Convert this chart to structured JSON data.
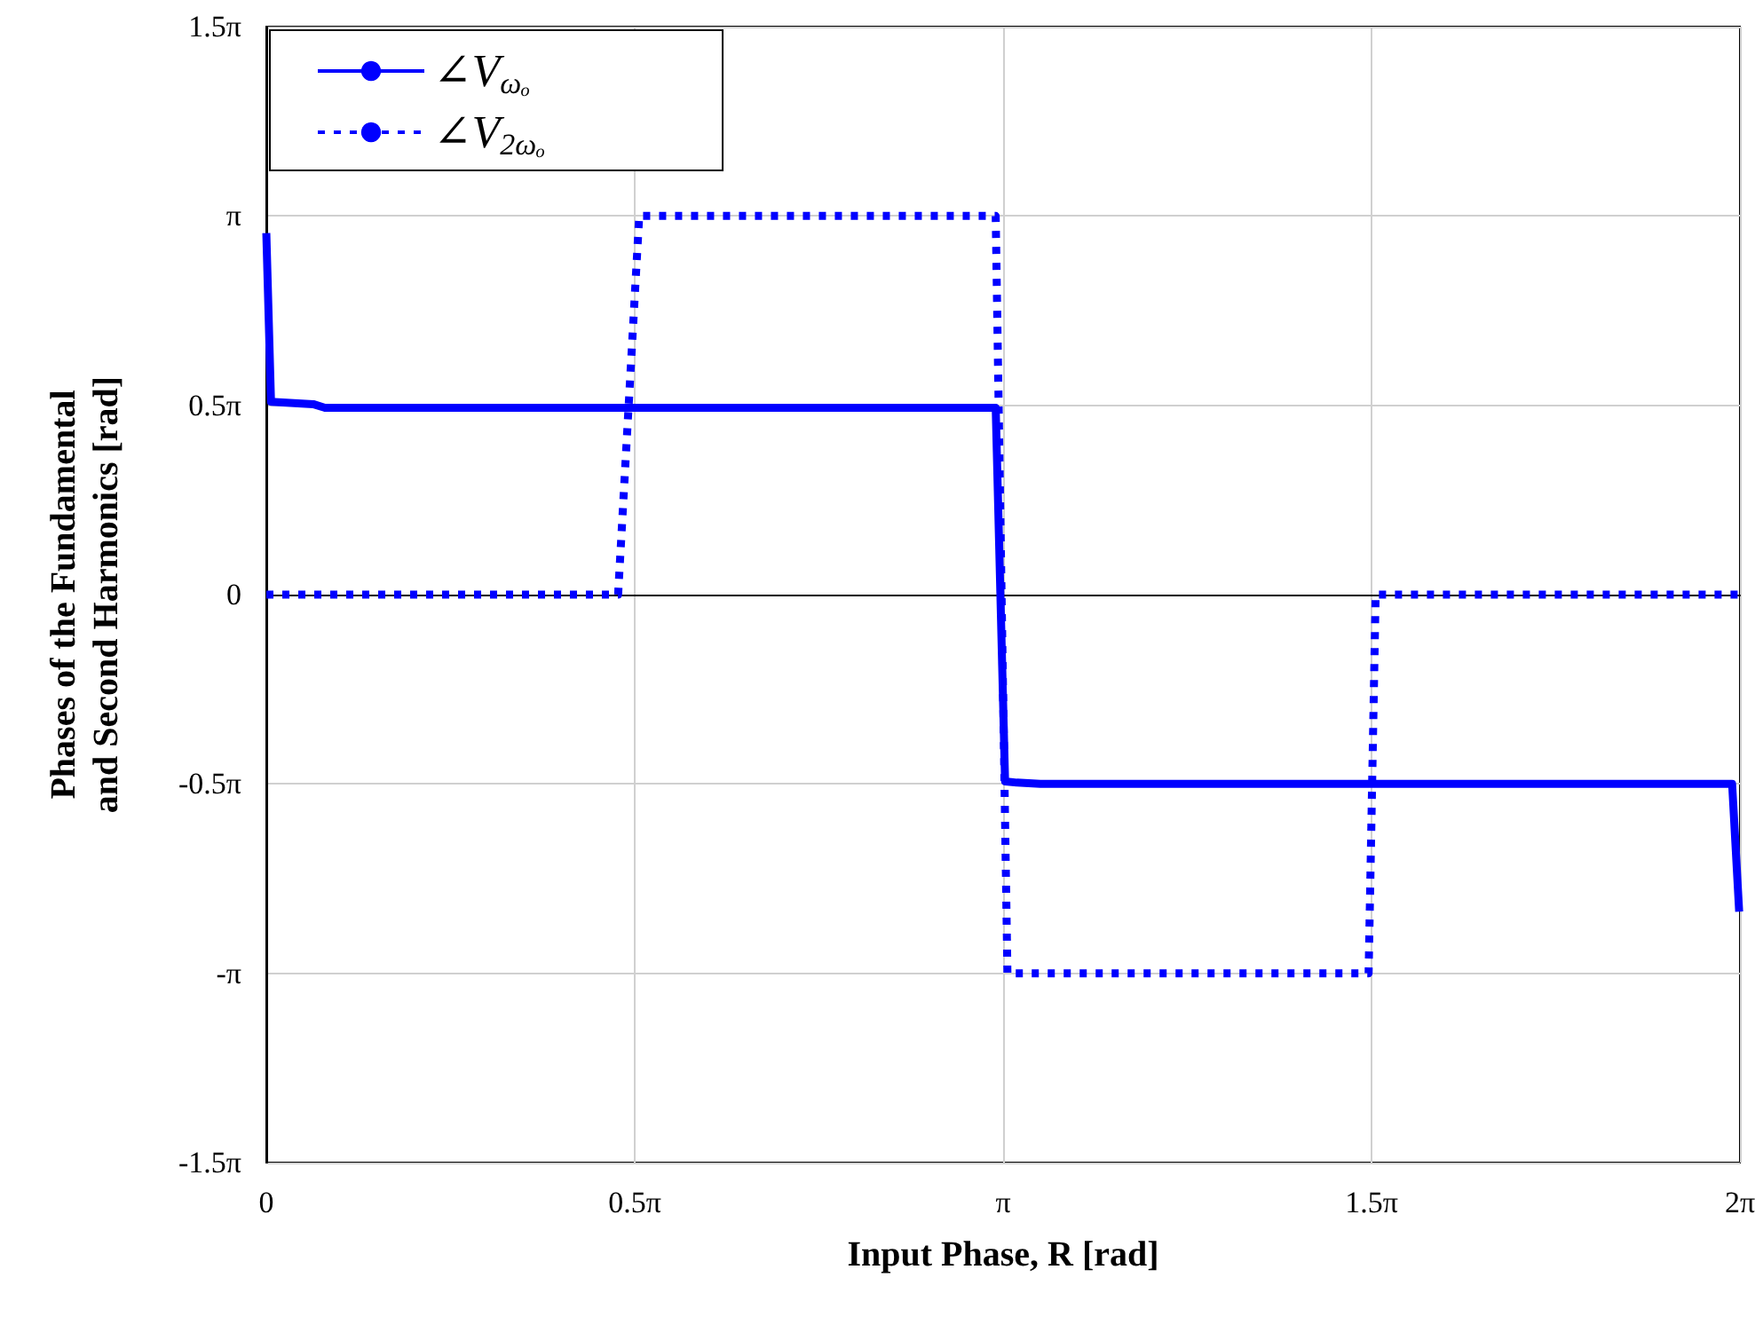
{
  "chart_data": {
    "type": "line",
    "xlabel": "Input Phase, R [rad]",
    "ylabel": "Phases of the Fundamental\nand Second Harmonics [rad]",
    "xlim": [
      0,
      6.2832
    ],
    "xticks": [
      0,
      {
        "value": 1.5708,
        "label": "0.5π"
      },
      {
        "value": 3.1416,
        "label": "π"
      },
      {
        "value": 4.7124,
        "label": "1.5π"
      },
      {
        "value": 6.2832,
        "label": "2π"
      }
    ],
    "ylim": [
      -4.7124,
      4.7124
    ],
    "yticks": [
      {
        "value": -4.7124,
        "label": "-1.5π"
      },
      {
        "value": -3.1416,
        "label": "-π"
      },
      {
        "value": -1.5708,
        "label": "-0.5π"
      },
      0,
      {
        "value": 1.5708,
        "label": "0.5π"
      },
      {
        "value": 3.1416,
        "label": "π"
      },
      {
        "value": 4.7124,
        "label": "1.5π"
      }
    ],
    "grid": true,
    "legend": "top left",
    "marker": "none",
    "series": [
      {
        "name": "∠V$_{ωₒ}$",
        "color": "#0000ff",
        "line_style": "solid",
        "x": [
          0,
          0.02,
          0.2,
          0.25,
          3.11,
          3.15,
          3.2,
          3.3,
          6.25,
          6.28
        ],
        "values": [
          3.0,
          1.6,
          1.58,
          1.55,
          1.55,
          -1.55,
          -1.56,
          -1.57,
          -1.57,
          -2.63
        ]
      },
      {
        "name": "∠V$_{2ωₒ}$",
        "color": "#0000ff",
        "line_style": "dotted",
        "x": [
          0,
          1.5,
          1.59,
          3.11,
          3.16,
          4.7,
          4.73,
          6.28
        ],
        "values": [
          0,
          0,
          3.1416,
          3.1416,
          -3.1416,
          -3.1416,
          0,
          0
        ]
      }
    ]
  }
}
